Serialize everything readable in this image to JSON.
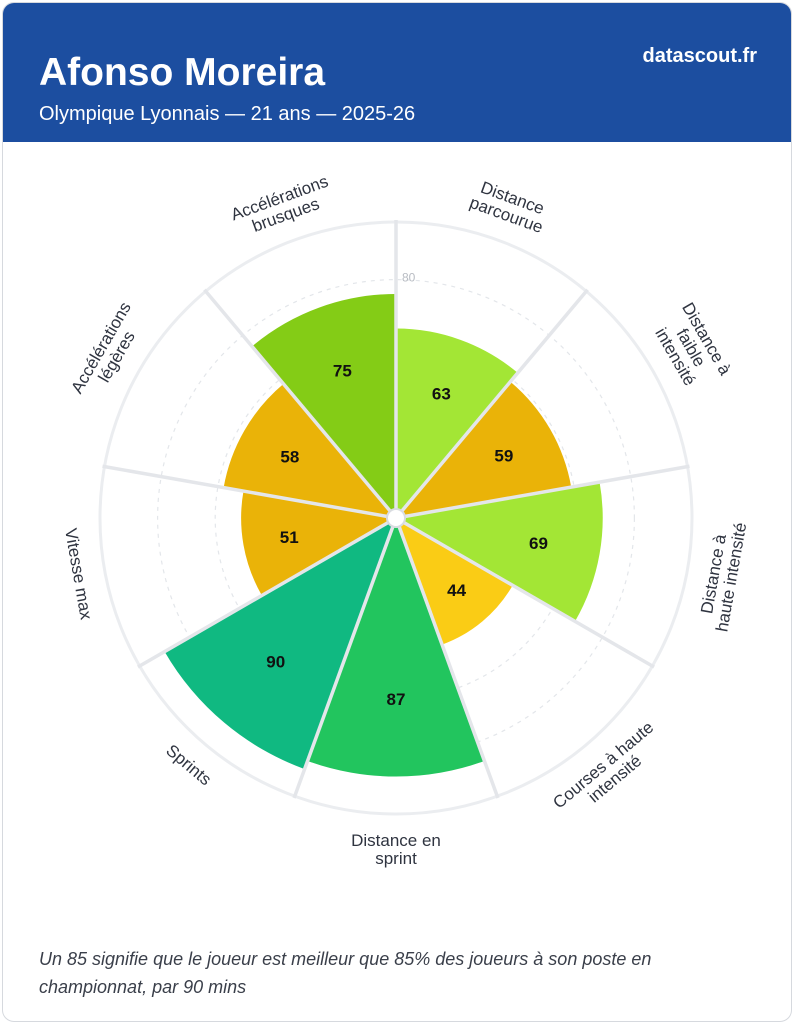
{
  "header": {
    "player_name": "Afonso Moreira",
    "subtitle": "Olympique Lyonnais — 21 ans — 2025-26",
    "brand": "datascout.fr",
    "background": "#1c4ea0"
  },
  "chart_data": {
    "type": "polar-bar",
    "title": "Afonso Moreira",
    "scale_max": 100,
    "reference_ring": 80,
    "reference_ring_label": "80",
    "gridline_values": [
      20,
      40,
      60,
      80,
      100
    ],
    "categories": [
      {
        "lines": [
          "Distance",
          "parcourue"
        ],
        "value": 63,
        "color": "#a3e635"
      },
      {
        "lines": [
          "Distance à",
          "faible",
          "intensité"
        ],
        "value": 59,
        "color": "#eab308"
      },
      {
        "lines": [
          "Distance à",
          "haute intensité"
        ],
        "value": 69,
        "color": "#a3e635"
      },
      {
        "lines": [
          "Courses à haute",
          "intensité"
        ],
        "value": 44,
        "color": "#facc15"
      },
      {
        "lines": [
          "Distance en",
          "sprint"
        ],
        "value": 87,
        "color": "#22c55e"
      },
      {
        "lines": [
          "Sprints"
        ],
        "value": 90,
        "color": "#10b981"
      },
      {
        "lines": [
          "Vitesse max"
        ],
        "value": 51,
        "color": "#eab308"
      },
      {
        "lines": [
          "Accélérations",
          "légères"
        ],
        "value": 58,
        "color": "#eab308"
      },
      {
        "lines": [
          "Accélérations",
          "brusques"
        ],
        "value": 75,
        "color": "#84cc16"
      }
    ]
  },
  "footnote": "Un 85 signifie que le joueur est meilleur que 85% des joueurs à son poste en championnat, par 90 mins"
}
